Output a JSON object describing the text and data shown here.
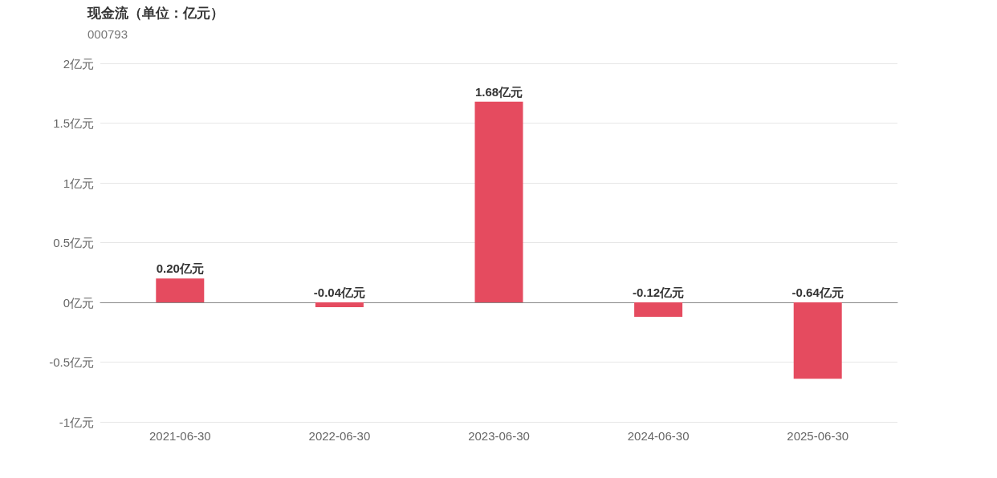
{
  "chart_data": {
    "type": "bar",
    "title": "现金流（单位：亿元）",
    "subtitle": "000793",
    "categories": [
      "2021-06-30",
      "2022-06-30",
      "2023-06-30",
      "2024-06-30",
      "2025-06-30"
    ],
    "values": [
      0.2,
      -0.04,
      1.68,
      -0.12,
      -0.64
    ],
    "color": "#e54b5f",
    "value_labels": [
      "0.20亿元",
      "-0.04亿元",
      "1.68亿元",
      "-0.12亿元",
      "-0.64亿元"
    ],
    "ylim": [
      -1,
      2
    ],
    "yticks": [
      {
        "value": -1,
        "label": "-1亿元"
      },
      {
        "value": -0.5,
        "label": "-0.5亿元"
      },
      {
        "value": 0,
        "label": "0亿元"
      },
      {
        "value": 0.5,
        "label": "0.5亿元"
      },
      {
        "value": 1,
        "label": "1亿元"
      },
      {
        "value": 1.5,
        "label": "1.5亿元"
      },
      {
        "value": 2,
        "label": "2亿元"
      }
    ],
    "grid": "y"
  }
}
